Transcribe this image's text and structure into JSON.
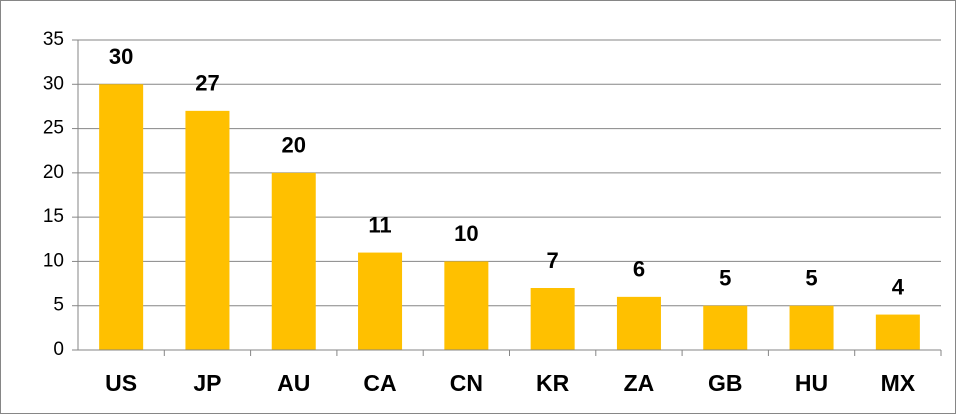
{
  "chart_data": {
    "type": "bar",
    "categories": [
      "US",
      "JP",
      "AU",
      "CA",
      "CN",
      "KR",
      "ZA",
      "GB",
      "HU",
      "MX"
    ],
    "values": [
      30,
      27,
      20,
      11,
      10,
      7,
      6,
      5,
      5,
      4
    ],
    "color": "#ffc000",
    "ylim": [
      0,
      35
    ],
    "yticks": [
      0,
      5,
      10,
      15,
      20,
      25,
      30,
      35
    ],
    "grid": true
  }
}
